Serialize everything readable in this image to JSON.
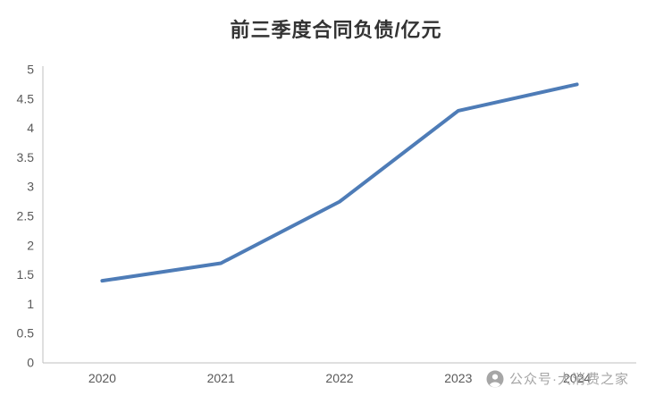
{
  "chart_data": {
    "type": "line",
    "title": "前三季度合同负债/亿元",
    "categories": [
      "2020",
      "2021",
      "2022",
      "2023",
      "2024"
    ],
    "series": [
      {
        "name": "前三季度合同负债",
        "values": [
          1.4,
          1.7,
          2.75,
          4.3,
          4.75
        ]
      }
    ],
    "xlabel": "",
    "ylabel": "",
    "ylim": [
      0,
      5
    ],
    "ytick_step": 0.5,
    "yticks": [
      0,
      0.5,
      1,
      1.5,
      2,
      2.5,
      3,
      3.5,
      4,
      4.5,
      5
    ],
    "grid": false,
    "legend": "none",
    "line_color": "#4e7cb7",
    "axis_color": "#bfbfbf",
    "label_color": "#595959"
  },
  "watermark": {
    "text": "公众号·大消费之家",
    "icon": "person-badge-icon",
    "color": "#a6a6a6"
  }
}
